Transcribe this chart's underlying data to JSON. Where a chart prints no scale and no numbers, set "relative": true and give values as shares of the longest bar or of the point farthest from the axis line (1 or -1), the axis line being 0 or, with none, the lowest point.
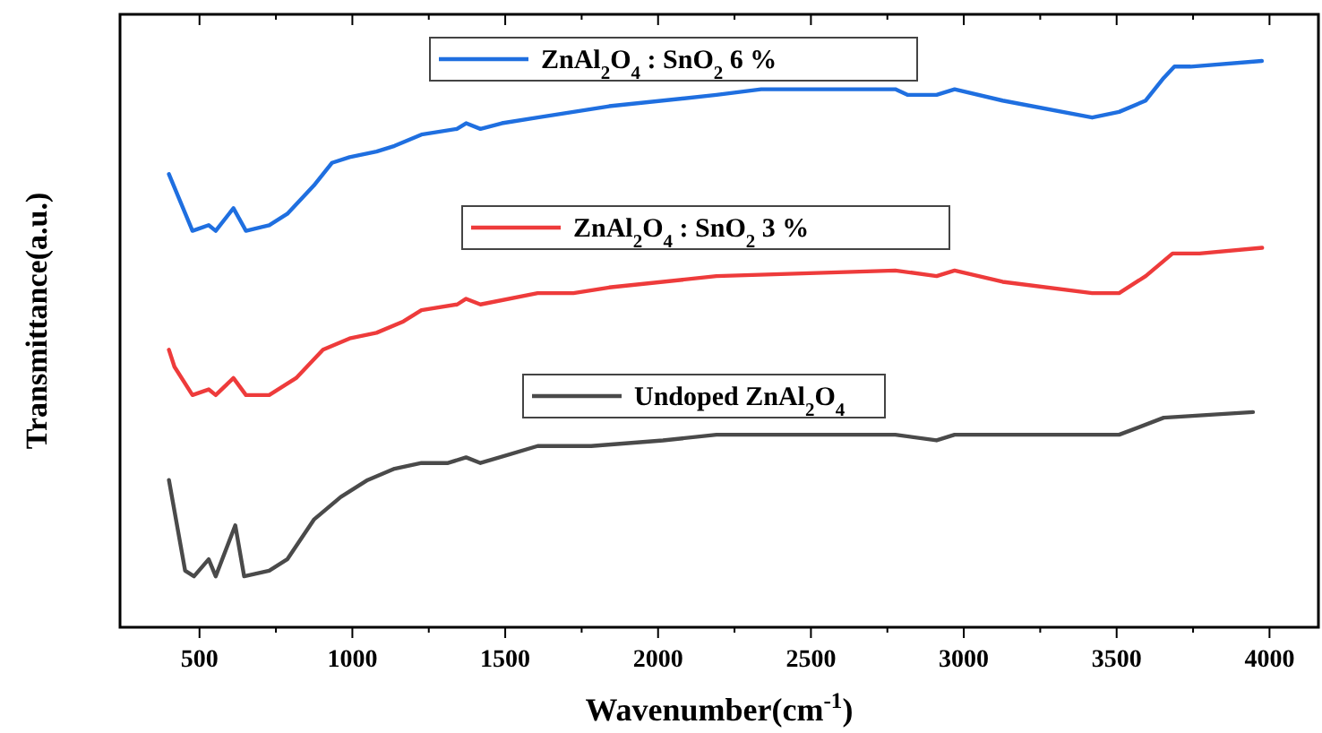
{
  "chart_data": {
    "type": "line",
    "relative": true,
    "xlabel": "Wavenumber(cm$^{-1}$)",
    "ylabel": "Transmittance(a.u.)",
    "xlim": [
      240,
      4160
    ],
    "xticks": [
      500,
      1000,
      1500,
      2000,
      2500,
      3000,
      3500,
      4000
    ],
    "grid": false,
    "legend": "top",
    "line_style": "solid",
    "marker": "none",
    "series": [
      {
        "name": "ZnAl$_{2}$O$_{4}$ : SnO$_{2}$ 6 %",
        "color": "#1f6fe0",
        "x": [
          400,
          477,
          530,
          553,
          611,
          652,
          728,
          787,
          874,
          933,
          991,
          1079,
          1138,
          1226,
          1342,
          1372,
          1419,
          1489,
          1606,
          1723,
          1840,
          2191,
          2337,
          2776,
          2817,
          2911,
          2970,
          3127,
          3420,
          3508,
          3595,
          3654,
          3689,
          3742,
          3975
        ],
        "values": [
          0.8,
          0.7,
          0.71,
          0.7,
          0.74,
          0.7,
          0.71,
          0.73,
          0.78,
          0.82,
          0.83,
          0.84,
          0.85,
          0.87,
          0.88,
          0.89,
          0.88,
          0.89,
          0.9,
          0.91,
          0.92,
          0.94,
          0.95,
          0.95,
          0.94,
          0.94,
          0.95,
          0.93,
          0.9,
          0.91,
          0.93,
          0.97,
          0.99,
          0.99,
          1.0
        ]
      },
      {
        "name": "ZnAl$_{2}$O$_{4}$ : SnO$_{2}$ 3 %",
        "color": "#ee3b3b",
        "x": [
          400,
          418,
          477,
          530,
          553,
          611,
          652,
          728,
          816,
          904,
          991,
          1079,
          1167,
          1226,
          1343,
          1372,
          1419,
          1606,
          1723,
          1840,
          2191,
          2776,
          2911,
          2970,
          3127,
          3420,
          3508,
          3595,
          3683,
          3771,
          3976
        ],
        "values": [
          0.49,
          0.46,
          0.41,
          0.42,
          0.41,
          0.44,
          0.41,
          0.41,
          0.44,
          0.49,
          0.51,
          0.52,
          0.54,
          0.56,
          0.57,
          0.58,
          0.57,
          0.59,
          0.59,
          0.6,
          0.62,
          0.63,
          0.62,
          0.63,
          0.61,
          0.59,
          0.59,
          0.62,
          0.66,
          0.66,
          0.67
        ]
      },
      {
        "name": "Undoped ZnAl$_{2}$O$_{4}$",
        "color": "#4a4a4a",
        "x": [
          400,
          453,
          482,
          530,
          553,
          617,
          646,
          728,
          787,
          874,
          962,
          1050,
          1138,
          1226,
          1313,
          1372,
          1419,
          1606,
          1781,
          2016,
          2191,
          2776,
          2911,
          2970,
          3361,
          3508,
          3654,
          3946
        ],
        "values": [
          0.26,
          0.1,
          0.09,
          0.12,
          0.09,
          0.18,
          0.09,
          0.1,
          0.12,
          0.19,
          0.23,
          0.26,
          0.28,
          0.29,
          0.29,
          0.3,
          0.29,
          0.32,
          0.32,
          0.33,
          0.34,
          0.34,
          0.33,
          0.34,
          0.34,
          0.34,
          0.37,
          0.38
        ]
      }
    ]
  }
}
